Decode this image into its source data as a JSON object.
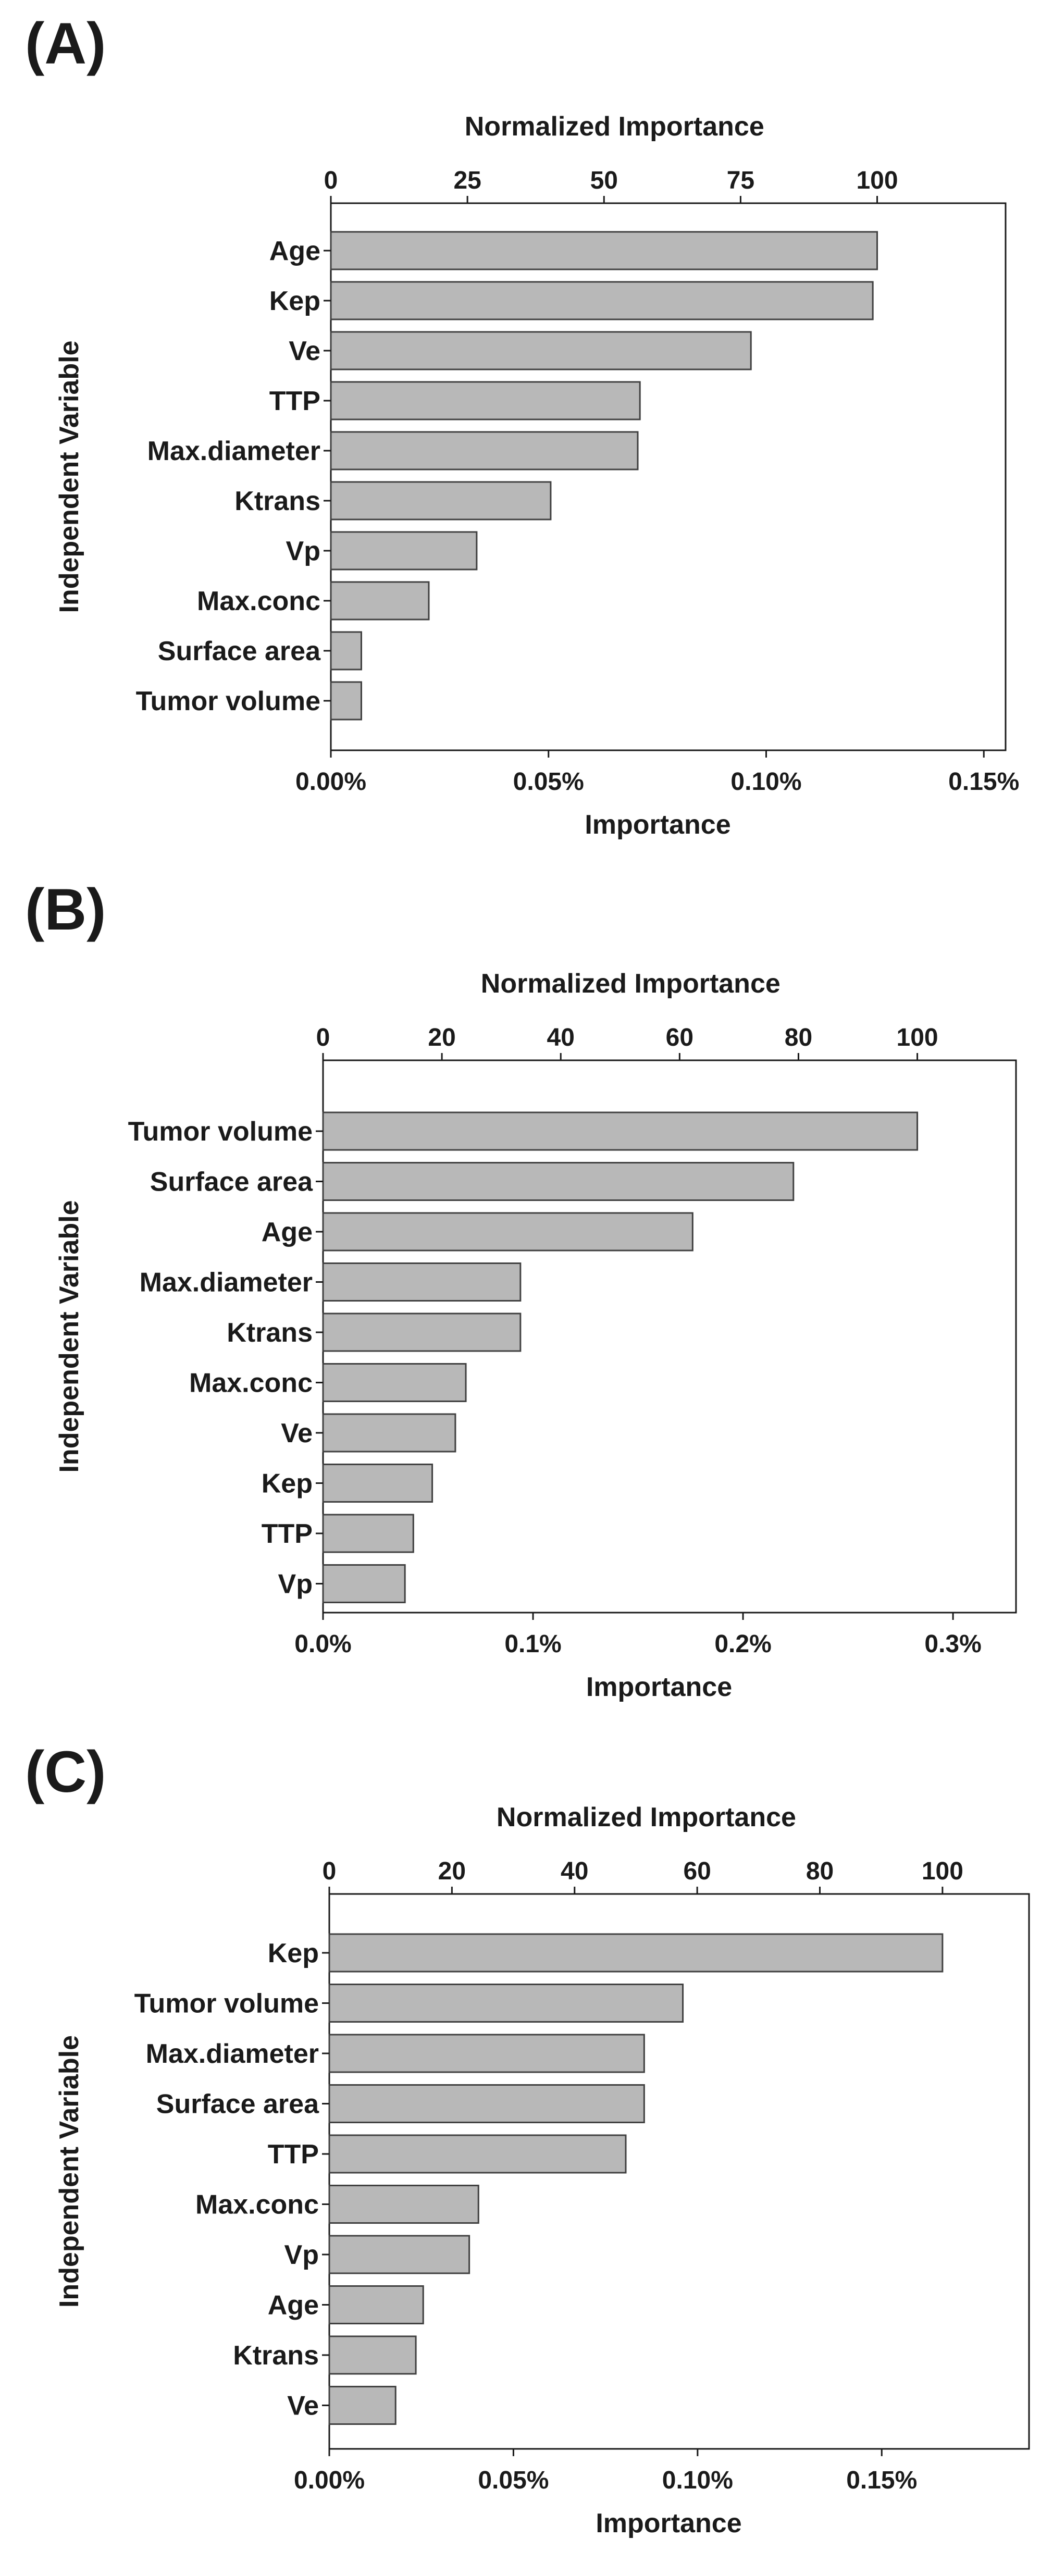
{
  "chart_data": [
    {
      "panel": "(A)",
      "type": "bar",
      "orientation": "horizontal",
      "xlabel": "Importance",
      "top_axis_label": "Normalized Importance",
      "ylabel": "Independent Variable",
      "xlim": [
        0,
        0.155
      ],
      "x_ticks": [
        0,
        0.05,
        0.1,
        0.15
      ],
      "x_tick_labels": [
        "0.00%",
        "0.05%",
        "0.10%",
        "0.15%"
      ],
      "top_ticks": [
        0,
        25,
        50,
        75,
        100
      ],
      "top_tick_labels": [
        "0",
        "25",
        "50",
        "75",
        "100"
      ],
      "max_importance": 0.1255,
      "categories": [
        "Age",
        "Kep",
        "Ve",
        "TTP",
        "Max.diameter",
        "Ktrans",
        "Vp",
        "Max.conc",
        "Surface area",
        "Tumor volume"
      ],
      "values": [
        0.1255,
        0.1245,
        0.0965,
        0.071,
        0.0705,
        0.0505,
        0.0335,
        0.0225,
        0.007,
        0.007
      ],
      "bar_fill": "#b8b8b8",
      "bar_stroke": "#404040"
    },
    {
      "panel": "(B)",
      "type": "bar",
      "orientation": "horizontal",
      "xlabel": "Importance",
      "top_axis_label": "Normalized Importance",
      "ylabel": "Independent Variable",
      "xlim": [
        0,
        0.33
      ],
      "x_ticks": [
        0,
        0.1,
        0.2,
        0.3
      ],
      "x_tick_labels": [
        "0.0%",
        "0.1%",
        "0.2%",
        "0.3%"
      ],
      "top_ticks": [
        0,
        20,
        40,
        60,
        80,
        100
      ],
      "top_tick_labels": [
        "0",
        "20",
        "40",
        "60",
        "80",
        "100"
      ],
      "max_importance": 0.283,
      "categories": [
        "Tumor volume",
        "Surface area",
        "Age",
        "Max.diameter",
        "Ktrans",
        "Max.conc",
        "Ve",
        "Kep",
        "TTP",
        "Vp"
      ],
      "values": [
        0.283,
        0.224,
        0.176,
        0.094,
        0.094,
        0.068,
        0.063,
        0.052,
        0.043,
        0.039
      ],
      "bar_fill": "#b8b8b8",
      "bar_stroke": "#404040"
    },
    {
      "panel": "(C)",
      "type": "bar",
      "orientation": "horizontal",
      "xlabel": "Importance",
      "top_axis_label": "Normalized Importance",
      "ylabel": "Independent Variable",
      "xlim": [
        0,
        0.19
      ],
      "x_ticks": [
        0,
        0.05,
        0.1,
        0.15
      ],
      "x_tick_labels": [
        "0.00%",
        "0.05%",
        "0.10%",
        "0.15%"
      ],
      "top_ticks": [
        0,
        20,
        40,
        60,
        80,
        100
      ],
      "top_tick_labels": [
        "0",
        "20",
        "40",
        "60",
        "80",
        "100"
      ],
      "max_importance": 0.1665,
      "categories": [
        "Kep",
        "Tumor volume",
        "Max.diameter",
        "Surface area",
        "TTP",
        "Max.conc",
        "Vp",
        "Age",
        "Ktrans",
        "Ve"
      ],
      "values": [
        0.1665,
        0.096,
        0.0855,
        0.0855,
        0.0805,
        0.0405,
        0.038,
        0.0255,
        0.0235,
        0.018
      ],
      "bar_fill": "#b8b8b8",
      "bar_stroke": "#404040"
    }
  ]
}
